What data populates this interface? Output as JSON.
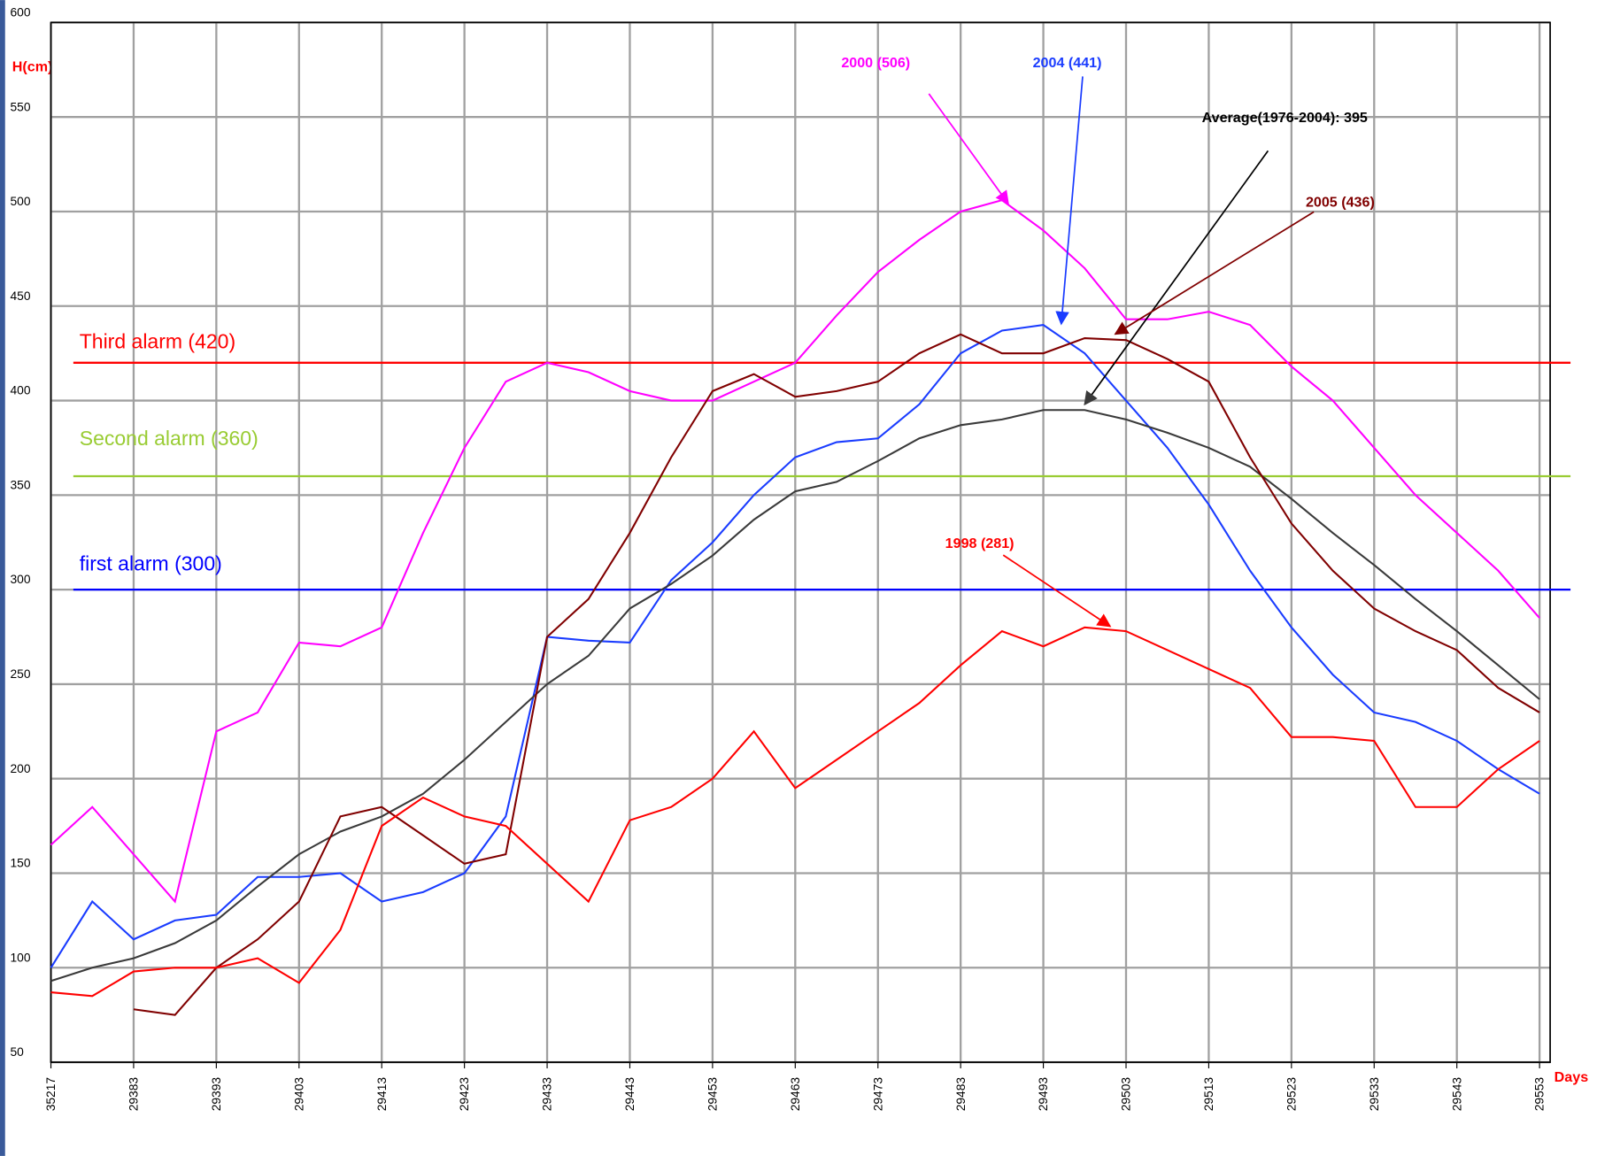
{
  "chart_data": {
    "type": "line",
    "ylabel": "H(cm)",
    "xlabel": "Days",
    "categories": [
      "35217",
      null,
      "29383",
      null,
      "29393",
      null,
      "29403",
      null,
      "29413",
      null,
      "29423",
      null,
      "29433",
      null,
      "29443",
      null,
      "29453",
      null,
      "29463",
      null,
      "29473",
      null,
      "29483",
      null,
      "29493",
      null,
      "29503",
      null,
      "29513",
      null,
      "29523",
      null,
      "29533",
      null,
      "29543",
      null,
      "29553"
    ],
    "ylim": [
      50,
      600
    ],
    "yticks": [
      50,
      100,
      150,
      200,
      250,
      300,
      350,
      400,
      450,
      500,
      550,
      600
    ],
    "grid": true,
    "series": [
      {
        "name": "2000 (506)",
        "color": "#ff00ff",
        "values": [
          165,
          185,
          160,
          135,
          225,
          235,
          272,
          270,
          280,
          330,
          375,
          410,
          420,
          415,
          405,
          400,
          400,
          410,
          420,
          445,
          468,
          485,
          500,
          506,
          490,
          470,
          443,
          443,
          447,
          440,
          418,
          400,
          375,
          350,
          330,
          310,
          285
        ]
      },
      {
        "name": "2004 (441)",
        "color": "#1a3cff",
        "values": [
          100,
          135,
          115,
          125,
          128,
          148,
          148,
          150,
          135,
          140,
          150,
          180,
          275,
          273,
          272,
          305,
          325,
          350,
          370,
          378,
          380,
          398,
          425,
          437,
          440,
          425,
          400,
          375,
          345,
          310,
          280,
          255,
          235,
          230,
          220,
          205,
          192
        ]
      },
      {
        "name": "Average(1976-2004): 395",
        "color": "#3a3a3a",
        "values": [
          93,
          100,
          105,
          113,
          125,
          143,
          160,
          172,
          180,
          192,
          210,
          230,
          250,
          265,
          290,
          303,
          318,
          337,
          352,
          357,
          368,
          380,
          387,
          390,
          395,
          395,
          390,
          383,
          375,
          365,
          348,
          330,
          313,
          295,
          278,
          260,
          242
        ]
      },
      {
        "name": "2005 (436)",
        "color": "#800000",
        "values": [
          null,
          null,
          78,
          75,
          100,
          115,
          135,
          180,
          185,
          170,
          155,
          160,
          275,
          295,
          330,
          370,
          405,
          414,
          402,
          405,
          410,
          425,
          435,
          425,
          425,
          433,
          432,
          422,
          410,
          370,
          335,
          310,
          290,
          278,
          268,
          248,
          235
        ]
      },
      {
        "name": "1998 (281)",
        "color": "#ff0000",
        "values": [
          87,
          85,
          98,
          100,
          100,
          105,
          92,
          120,
          175,
          190,
          180,
          175,
          155,
          135,
          178,
          185,
          200,
          225,
          195,
          210,
          225,
          240,
          260,
          278,
          270,
          280,
          278,
          268,
          258,
          248,
          222,
          222,
          220,
          185,
          185,
          205,
          220
        ]
      }
    ],
    "reference_lines": [
      {
        "label": "Third alarm (420)",
        "value": 420,
        "color": "#ff0000"
      },
      {
        "label": "Second alarm (360)",
        "value": 360,
        "color": "#99cc33"
      },
      {
        "label": "first alarm (300)",
        "value": 300,
        "color": "#0000ff"
      }
    ]
  }
}
